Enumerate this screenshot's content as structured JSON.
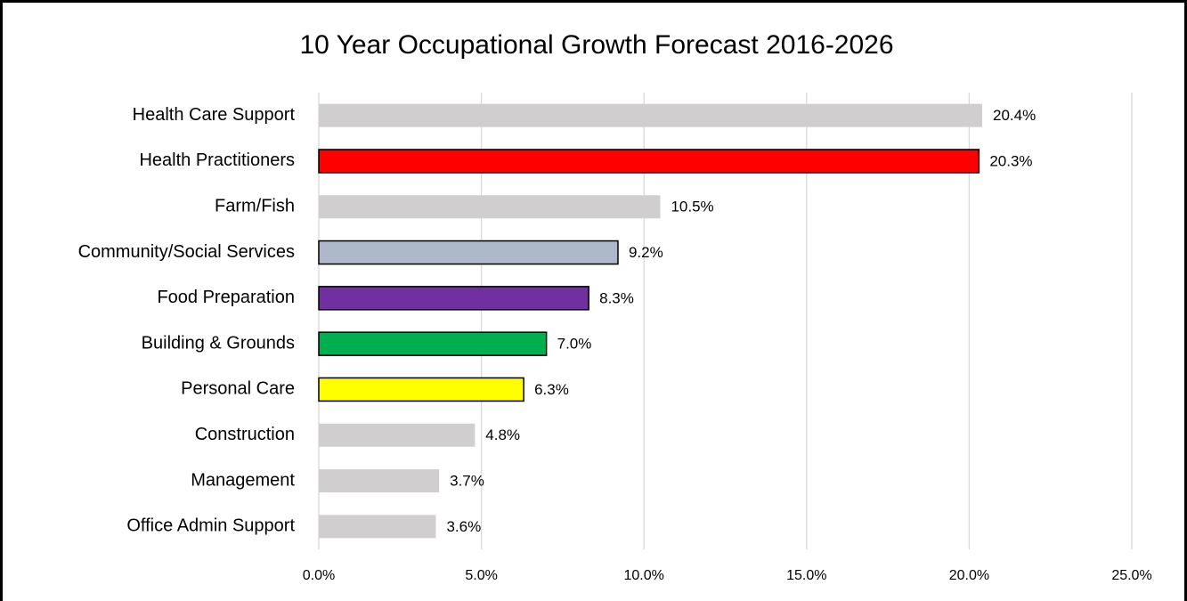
{
  "chart_data": {
    "type": "hbar",
    "title": "10 Year Occupational Growth Forecast 2016-2026",
    "categories": [
      "Health Care Support",
      "Health Practitioners",
      "Farm/Fish",
      "Community/Social Services",
      "Food Preparation",
      "Building & Grounds",
      "Personal Care",
      "Construction",
      "Management",
      "Office Admin Support"
    ],
    "values": [
      20.4,
      20.3,
      10.5,
      9.2,
      8.3,
      7.0,
      6.3,
      4.8,
      3.7,
      3.6
    ],
    "value_labels": [
      "20.4%",
      "20.3%",
      "10.5%",
      "9.2%",
      "8.3%",
      "7.0%",
      "6.3%",
      "4.8%",
      "3.7%",
      "3.6%"
    ],
    "colors": [
      "#d0cece",
      "#ff0000",
      "#d0cece",
      "#adb9ca",
      "#7030a0",
      "#00b050",
      "#ffff00",
      "#d0cece",
      "#d0cece",
      "#d0cece"
    ],
    "outlined": [
      false,
      true,
      false,
      true,
      true,
      true,
      true,
      false,
      false,
      false
    ],
    "xlim": [
      0,
      25
    ],
    "xticks": [
      {
        "value": 0,
        "label": "0.0%"
      },
      {
        "value": 5,
        "label": "5.0%"
      },
      {
        "value": 10,
        "label": "10.0%"
      },
      {
        "value": 15,
        "label": "15.0%"
      },
      {
        "value": 20,
        "label": "20.0%"
      },
      {
        "value": 25,
        "label": "25.0%"
      }
    ],
    "grid": true
  }
}
